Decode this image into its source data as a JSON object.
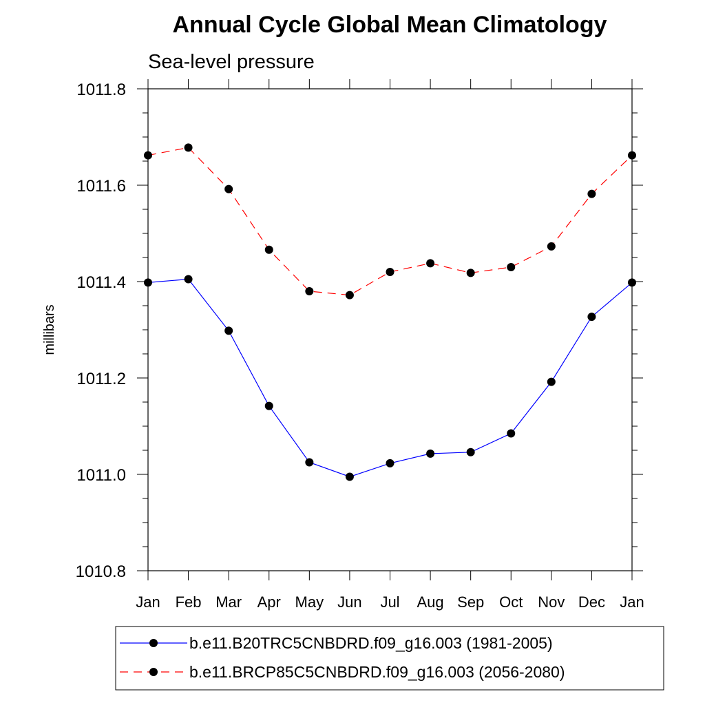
{
  "chart_data": {
    "type": "line",
    "title": "Annual Cycle Global Mean Climatology",
    "subtitle": "Sea-level pressure",
    "xlabel": "",
    "ylabel": "millibars",
    "ylim": [
      1010.8,
      1011.8
    ],
    "yticks": [
      1010.8,
      1011.0,
      1011.2,
      1011.4,
      1011.6,
      1011.8
    ],
    "ytick_labels": [
      "1010.8",
      "1011.0",
      "1011.2",
      "1011.4",
      "1011.6",
      "1011.8"
    ],
    "categories": [
      "Jan",
      "Feb",
      "Mar",
      "Apr",
      "May",
      "Jun",
      "Jul",
      "Aug",
      "Sep",
      "Oct",
      "Nov",
      "Dec",
      "Jan"
    ],
    "grid": false,
    "legend_position": "bottom",
    "series": [
      {
        "name": "b.e11.B20TRC5CNBDRD.f09_g16.003 (1981-2005)",
        "color": "#0000ff",
        "dash": "solid",
        "values": [
          1011.398,
          1011.405,
          1011.298,
          1011.142,
          1011.025,
          1010.995,
          1011.023,
          1011.043,
          1011.046,
          1011.085,
          1011.192,
          1011.327,
          1011.398
        ]
      },
      {
        "name": "b.e11.BRCP85C5CNBDRD.f09_g16.003 (2056-2080)",
        "color": "#ff0000",
        "dash": "dashed",
        "values": [
          1011.662,
          1011.678,
          1011.592,
          1011.466,
          1011.38,
          1011.372,
          1011.42,
          1011.438,
          1011.418,
          1011.43,
          1011.473,
          1011.582,
          1011.662
        ]
      }
    ]
  }
}
